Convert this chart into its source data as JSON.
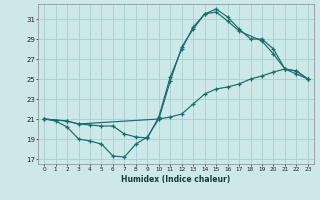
{
  "xlabel": "Humidex (Indice chaleur)",
  "bg_color": "#cce8e8",
  "line_color": "#1a6b6b",
  "grid_color": "#aad0d0",
  "xlim": [
    -0.5,
    23.5
  ],
  "ylim": [
    16.5,
    32.5
  ],
  "xticks": [
    0,
    1,
    2,
    3,
    4,
    5,
    6,
    7,
    8,
    9,
    10,
    11,
    12,
    13,
    14,
    15,
    16,
    17,
    18,
    19,
    20,
    21,
    22,
    23
  ],
  "yticks": [
    17,
    19,
    21,
    23,
    25,
    27,
    29,
    31
  ],
  "line1_x": [
    0,
    1,
    2,
    3,
    4,
    5,
    6,
    7,
    8,
    9,
    10,
    11,
    12,
    13,
    14,
    15,
    16,
    17,
    18,
    19,
    20,
    21,
    22,
    23
  ],
  "line1_y": [
    21.0,
    20.8,
    20.2,
    19.0,
    18.8,
    18.5,
    17.3,
    17.2,
    18.5,
    19.2,
    21.0,
    21.2,
    21.5,
    22.5,
    23.5,
    24.0,
    24.2,
    24.5,
    25.0,
    25.3,
    25.7,
    26.0,
    25.5,
    25.0
  ],
  "line2_x": [
    0,
    2,
    3,
    4,
    5,
    6,
    7,
    8,
    9,
    10,
    11,
    12,
    13,
    14,
    15,
    16,
    17,
    19,
    20,
    21,
    22,
    23
  ],
  "line2_y": [
    21.0,
    20.8,
    20.5,
    20.4,
    20.3,
    20.3,
    19.5,
    19.2,
    19.1,
    21.2,
    25.2,
    28.0,
    30.2,
    31.5,
    31.7,
    30.8,
    29.8,
    28.8,
    27.5,
    26.0,
    25.8,
    25.0
  ],
  "line3_x": [
    0,
    2,
    3,
    10,
    11,
    12,
    13,
    14,
    15,
    16,
    17,
    18,
    19,
    20,
    21,
    22,
    23
  ],
  "line3_y": [
    21.0,
    20.8,
    20.5,
    21.0,
    24.8,
    28.2,
    30.0,
    31.5,
    32.0,
    31.2,
    30.0,
    29.0,
    29.0,
    28.0,
    26.0,
    25.8,
    25.0
  ]
}
